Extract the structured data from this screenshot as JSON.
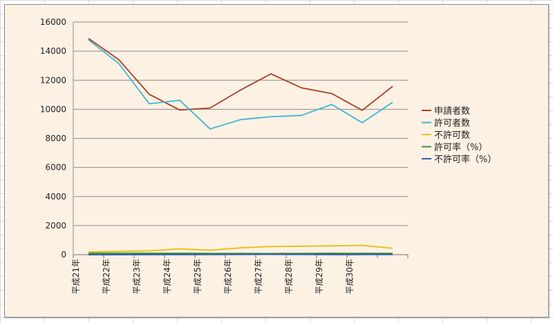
{
  "chart_data": {
    "type": "line",
    "title": "",
    "xlabel": "",
    "ylabel": "",
    "ylim": [
      0,
      16000
    ],
    "yticks": [
      0,
      2000,
      4000,
      6000,
      8000,
      10000,
      12000,
      14000,
      16000
    ],
    "grid": true,
    "legend_position": "right",
    "categories": [
      "平成21年",
      "平成22年",
      "平成23年",
      "平成24年",
      "平成25年",
      "平成26年",
      "平成27年",
      "平成28年",
      "平成29年",
      "平成30年",
      ""
    ],
    "series": [
      {
        "name": "申請者数",
        "color": "#a8401c",
        "values": [
          14880,
          13410,
          11030,
          9950,
          10090,
          11330,
          12440,
          11480,
          11080,
          9930,
          11580
        ]
      },
      {
        "name": "許可者数",
        "color": "#3bb6d2",
        "values": [
          14780,
          13140,
          10380,
          10620,
          8650,
          9290,
          9490,
          9580,
          10330,
          9080,
          10490
        ]
      },
      {
        "name": "不許可数",
        "color": "#e8c21c",
        "values": [
          190,
          230,
          260,
          400,
          310,
          470,
          560,
          580,
          610,
          640,
          440
        ]
      },
      {
        "name": "許可率（%）",
        "color": "#3f8f45",
        "values": [
          99,
          98,
          94,
          93,
          86,
          82,
          76,
          83,
          93,
          91,
          91
        ]
      },
      {
        "name": "不許可率（%）",
        "color": "#2e5fa8",
        "values": [
          1,
          2,
          6,
          7,
          14,
          18,
          24,
          17,
          7,
          9,
          9
        ]
      }
    ]
  }
}
